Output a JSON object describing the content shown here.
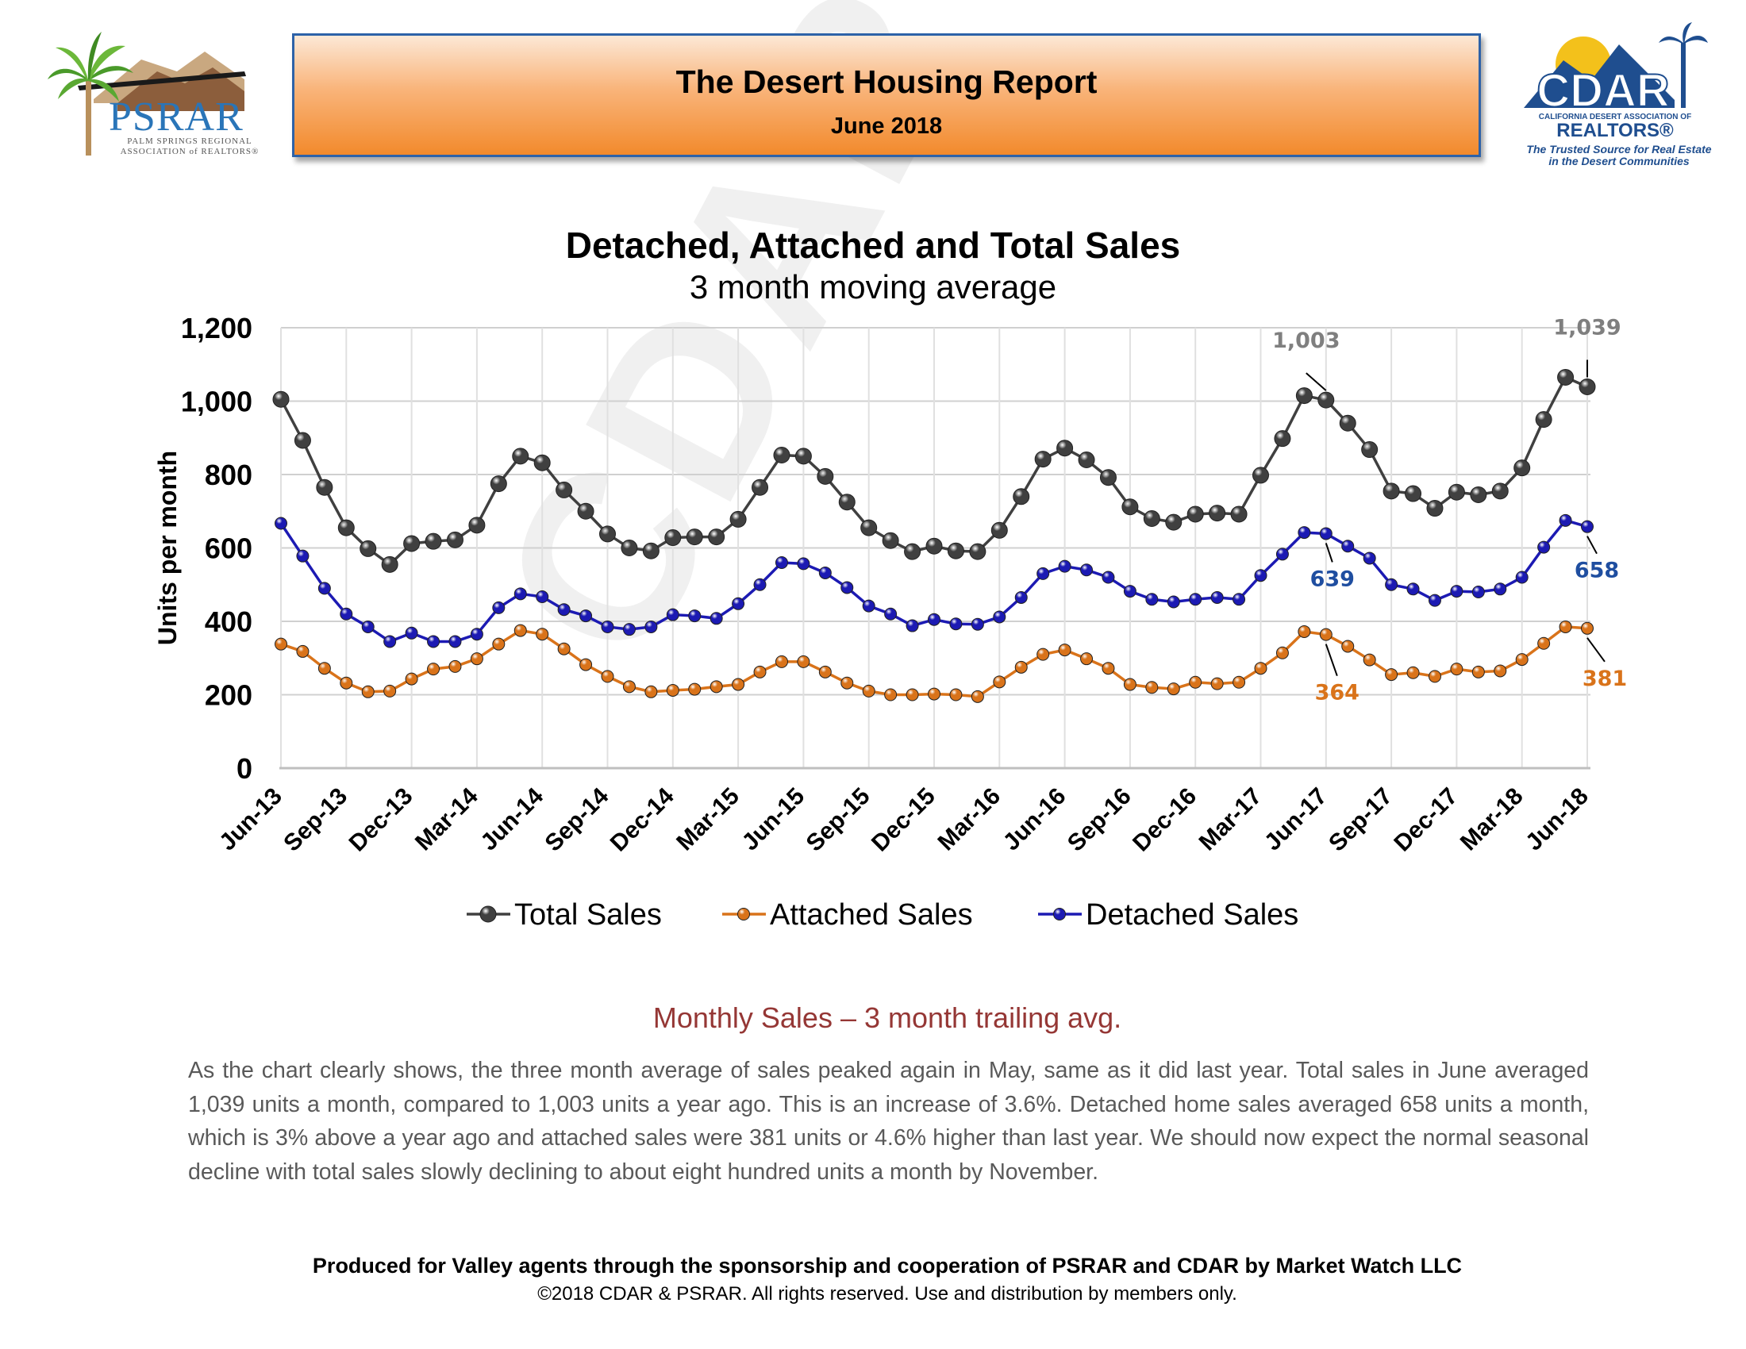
{
  "watermark": "CDAR",
  "header": {
    "left_logo": {
      "name": "PSRAR",
      "line1": "PALM SPRINGS REGIONAL",
      "line2": "ASSOCIATION of REALTORS®"
    },
    "banner_title": "The Desert Housing Report",
    "banner_date": "June 2018",
    "right_logo": {
      "name": "CDAR",
      "line1": "CALIFORNIA DESERT ASSOCIATION OF",
      "line2": "REALTORS®",
      "tagline1": "The Trusted Source for Real Estate",
      "tagline2": "in the Desert Communities"
    }
  },
  "chart_data": {
    "type": "line",
    "title": "Detached, Attached and Total Sales",
    "subtitle": "3 month moving average",
    "ylabel": "Units per month",
    "ylim": [
      0,
      1200
    ],
    "yticks": [
      0,
      200,
      400,
      600,
      800,
      1000,
      1200
    ],
    "ytick_labels": [
      "0",
      "200",
      "400",
      "600",
      "800",
      "1,000",
      "1,200"
    ],
    "xtick_labels": [
      "Jun-13",
      "Sep-13",
      "Dec-13",
      "Mar-14",
      "Jun-14",
      "Sep-14",
      "Dec-14",
      "Mar-15",
      "Jun-15",
      "Sep-15",
      "Dec-15",
      "Mar-16",
      "Jun-16",
      "Sep-16",
      "Dec-16",
      "Mar-17",
      "Jun-17",
      "Sep-17",
      "Dec-17",
      "Mar-18",
      "Jun-18"
    ],
    "legend_position": "bottom",
    "grid": "horizontal",
    "series": [
      {
        "name": "Total Sales",
        "color": "#404040",
        "values": [
          1005,
          893,
          765,
          655,
          598,
          555,
          612,
          618,
          622,
          662,
          775,
          850,
          832,
          758,
          700,
          638,
          600,
          592,
          628,
          630,
          630,
          678,
          765,
          853,
          850,
          795,
          725,
          655,
          620,
          590,
          605,
          592,
          590,
          648,
          740,
          842,
          872,
          840,
          792,
          712,
          680,
          670,
          692,
          695,
          692,
          798,
          898,
          1015,
          1003,
          940,
          868,
          755,
          748,
          708,
          752,
          745,
          755,
          818,
          950,
          1065,
          1039
        ]
      },
      {
        "name": "Attached Sales",
        "color": "#d9731a",
        "values": [
          338,
          318,
          272,
          232,
          208,
          210,
          243,
          270,
          277,
          298,
          338,
          375,
          365,
          325,
          282,
          250,
          222,
          208,
          212,
          215,
          222,
          228,
          262,
          290,
          290,
          262,
          232,
          210,
          200,
          200,
          202,
          200,
          195,
          235,
          275,
          310,
          322,
          298,
          272,
          228,
          220,
          216,
          234,
          230,
          234,
          272,
          314,
          372,
          364,
          332,
          295,
          255,
          260,
          250,
          270,
          262,
          265,
          296,
          340,
          385,
          381
        ]
      },
      {
        "name": "Detached Sales",
        "color": "#1c1ab3",
        "values": [
          667,
          578,
          490,
          420,
          385,
          345,
          368,
          345,
          345,
          365,
          437,
          475,
          467,
          432,
          415,
          385,
          378,
          385,
          418,
          415,
          408,
          448,
          500,
          560,
          557,
          532,
          492,
          442,
          420,
          388,
          405,
          393,
          392,
          412,
          465,
          530,
          550,
          540,
          520,
          482,
          460,
          453,
          460,
          465,
          460,
          525,
          583,
          642,
          639,
          605,
          572,
          500,
          488,
          457,
          482,
          480,
          488,
          520,
          602,
          675,
          658
        ]
      }
    ],
    "annotations": [
      {
        "series": "Total Sales",
        "index": 48,
        "label": "1,003"
      },
      {
        "series": "Total Sales",
        "index": 60,
        "label": "1,039"
      },
      {
        "series": "Detached Sales",
        "index": 48,
        "label": "639"
      },
      {
        "series": "Detached Sales",
        "index": 60,
        "label": "658"
      },
      {
        "series": "Attached Sales",
        "index": 48,
        "label": "364"
      },
      {
        "series": "Attached Sales",
        "index": 60,
        "label": "381"
      }
    ]
  },
  "commentary": {
    "heading": "Monthly Sales – 3 month trailing avg.",
    "paragraph": "As the chart clearly shows, the three month average of sales peaked again in May, same as it did last year. Total sales in June averaged 1,039 units a month, compared to 1,003 units a year ago. This is an increase of 3.6%. Detached home sales averaged 658 units a month, which is 3% above a year ago and attached sales were 381 units or 4.6% higher than last year. We should now expect the normal seasonal decline with total sales slowly declining to about eight hundred units a month by November."
  },
  "footer": {
    "produced_by": "Produced for Valley agents through the sponsorship and cooperation of PSRAR and CDAR by Market Watch LLC",
    "copyright": "©2018 CDAR & PSRAR.  All rights reserved.  Use and distribution by members only."
  }
}
